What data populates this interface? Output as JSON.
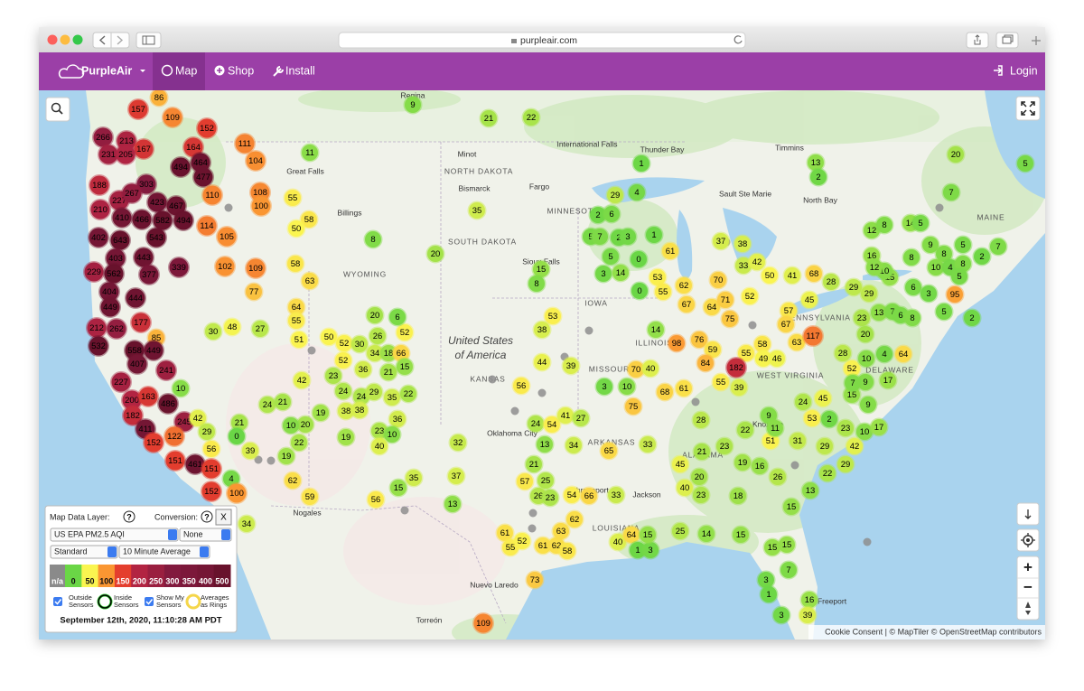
{
  "browser": {
    "url": "purpleair.com"
  },
  "nav": {
    "brand": "PurpleAir",
    "items": [
      "Map",
      "Shop",
      "Install"
    ],
    "login": "Login"
  },
  "map": {
    "country": [
      "United States",
      "of America"
    ],
    "places": [
      "Regina",
      "Minot",
      "NORTH DAKOTA",
      "Bismarck",
      "Fargo",
      "International Falls",
      "Thunder Bay",
      "Timmins",
      "Great Falls",
      "Sault Ste Marie",
      "North Bay",
      "Billings",
      "MINNESOTA",
      "SOUTH DAKOTA",
      "WYOMING",
      "Sioux Falls",
      "IOWA",
      "ILLINOIS",
      "MISSOURI",
      "KANSAS",
      "PENNSYLVANIA",
      "WEST VIRGINIA",
      "DELAWARE",
      "MAINE",
      "ARKANSAS",
      "Oklahoma City",
      "Jackson",
      "LOUISIANA",
      "ALABAMA",
      "Knoxville",
      "Shreveport",
      "Freeport",
      "Nogales",
      "Nuevo Laredo",
      "Torreón"
    ],
    "sensors": [
      157,
      86,
      109,
      152,
      266,
      213,
      167,
      231,
      205,
      164,
      494,
      464,
      477,
      188,
      303,
      227,
      267,
      423,
      467,
      110,
      210,
      410,
      466,
      582,
      494,
      114,
      402,
      643,
      543,
      403,
      443,
      229,
      562,
      377,
      339,
      404,
      444,
      449,
      177,
      212,
      262,
      85,
      532,
      558,
      449,
      407,
      241,
      227,
      10,
      200,
      163,
      486,
      182,
      245,
      42,
      411,
      122,
      152,
      56,
      29,
      151,
      461,
      151,
      4,
      152,
      100,
      34,
      21,
      0,
      39,
      111,
      104,
      108,
      100,
      105,
      102,
      109,
      77,
      55,
      58,
      50,
      11,
      58,
      63,
      64,
      55,
      51,
      50,
      48,
      30,
      27,
      52,
      30,
      52,
      36,
      34,
      18,
      66,
      52,
      26,
      20,
      6,
      21,
      15,
      42,
      23,
      24,
      24,
      29,
      35,
      22,
      24,
      21,
      38,
      38,
      36,
      19,
      20,
      10,
      23,
      10,
      40,
      22,
      19,
      19,
      62,
      59,
      35,
      15,
      56,
      37,
      13,
      32,
      8,
      20,
      35,
      9,
      21,
      22,
      29,
      4,
      2,
      6,
      5,
      7,
      2,
      3,
      1,
      5,
      3,
      14,
      0,
      0,
      1,
      61,
      15,
      8,
      53,
      38,
      53,
      55,
      62,
      67,
      64,
      70,
      71,
      75,
      37,
      38,
      33,
      42,
      52,
      50,
      41,
      68,
      28,
      45,
      57,
      67,
      63,
      117,
      29,
      29,
      14,
      98,
      76,
      59,
      84,
      55,
      58,
      49,
      46,
      182,
      44,
      56,
      39,
      70,
      40,
      3,
      10,
      68,
      61,
      55,
      39,
      75,
      24,
      54,
      41,
      27,
      13,
      34,
      65,
      33,
      21,
      25,
      57,
      26,
      23,
      54,
      66,
      33,
      62,
      61,
      55,
      52,
      61,
      62,
      63,
      58,
      73,
      40,
      64,
      1,
      3,
      15,
      25,
      14,
      15,
      109,
      28,
      21,
      45,
      20,
      23,
      22,
      19,
      16,
      51,
      9,
      11,
      31,
      24,
      53,
      2,
      23,
      10,
      17,
      29,
      42,
      26,
      22,
      29,
      13,
      15,
      15,
      15,
      3,
      7,
      1,
      3,
      16,
      39,
      18,
      40,
      23,
      52,
      45,
      9,
      15,
      9,
      17,
      7,
      28,
      10,
      4,
      64,
      23,
      13,
      7,
      20,
      6,
      8,
      5,
      2,
      15,
      10,
      6,
      3,
      95,
      9,
      5,
      7,
      2,
      8,
      10,
      4,
      8,
      5,
      12,
      8,
      14,
      5,
      16,
      12,
      13,
      2,
      7,
      20,
      5,
      8
    ],
    "zoom_in": "+",
    "zoom_out": "−",
    "attribution": "Cookie Consent | © MapTiler © OpenStreetMap contributors"
  },
  "panel": {
    "layer_label": "Map Data Layer:",
    "help": "?",
    "conversion_label": "Conversion:",
    "close": "X",
    "layer": "US EPA PM2.5 AQI",
    "conversion": "None",
    "mode": "Standard",
    "average": "10 Minute Average",
    "scale": [
      "n/a",
      0,
      50,
      100,
      150,
      200,
      250,
      300,
      350,
      400,
      500
    ],
    "options": [
      [
        "Outside",
        "Sensors"
      ],
      [
        "Inside",
        "Sensors"
      ],
      [
        "Show My",
        "Sensors"
      ],
      [
        "Averages",
        "as Rings"
      ]
    ],
    "timestamp": "September 12th, 2020, 11:10:28 AM PDT"
  }
}
